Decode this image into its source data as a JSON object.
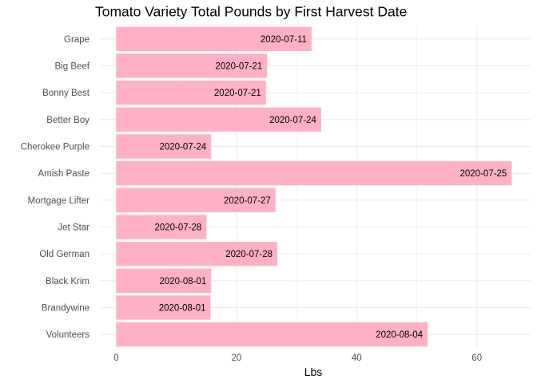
{
  "chart_data": {
    "type": "bar",
    "orientation": "horizontal",
    "title": "Tomato Variety Total Pounds by First Harvest Date",
    "xlabel": "Lbs",
    "ylabel": "",
    "xlim": [
      0,
      66
    ],
    "xticks": [
      0,
      20,
      40,
      60
    ],
    "grid": true,
    "legend": "none",
    "bar_color": "#ffb0c4",
    "categories": [
      "Grape",
      "Big Beef",
      "Bonny Best",
      "Better Boy",
      "Cherokee Purple",
      "Amish Paste",
      "Mortgage Lifter",
      "Jet Star",
      "Old German",
      "Black Krim",
      "Brandywine",
      "Volunteers"
    ],
    "values": [
      32.5,
      25.1,
      24.9,
      34.1,
      15.8,
      65.8,
      26.5,
      15.0,
      26.8,
      15.8,
      15.7,
      51.8
    ],
    "data_labels": [
      "2020-07-11",
      "2020-07-21",
      "2020-07-21",
      "2020-07-24",
      "2020-07-24",
      "2020-07-25",
      "2020-07-27",
      "2020-07-28",
      "2020-07-28",
      "2020-08-01",
      "2020-08-01",
      "2020-08-04"
    ]
  }
}
